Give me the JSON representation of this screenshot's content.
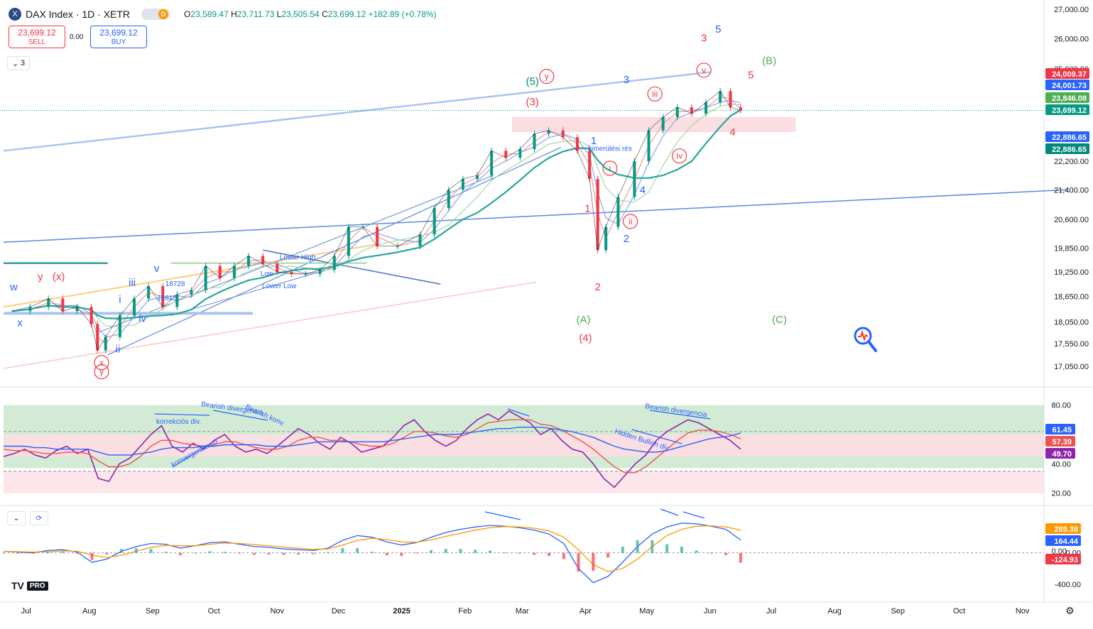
{
  "header": {
    "symbol_icon": "X",
    "title": "DAX Index · 1D · XETR",
    "badge": "D",
    "ohlc": {
      "o_label": "O",
      "o": "23,589.47",
      "h_label": "H",
      "h": "23,711.73",
      "l_label": "L",
      "l": "23,505.54",
      "c_label": "C",
      "c": "23,699.12",
      "change": "+182.89 (+0.78%)"
    }
  },
  "trade": {
    "sell_price": "23,699.12",
    "sell_label": "SELL",
    "spread": "0.00",
    "buy_price": "23,699.12",
    "buy_label": "BUY"
  },
  "legend_toggle": {
    "count": "3",
    "icon": "chevron-down-icon"
  },
  "macd_controls": {
    "collapse_icon": "chevron-down-icon",
    "refresh_icon": "refresh-icon"
  },
  "branding": {
    "logo": "TV",
    "plan": "PRO"
  },
  "settings_icon": "gear-icon",
  "chart_data": [
    {
      "type": "line",
      "panel": "price",
      "ylim": [
        16600,
        27200
      ],
      "scale": "log",
      "y_ticks": [
        "27,000.00",
        "26,000.00",
        "25,000.00",
        "23,000.00",
        "22,200.00",
        "21,400.00",
        "20,600.00",
        "19,850.00",
        "19,250.00",
        "18,650.00",
        "18,050.00",
        "17,550.00",
        "17,050.00"
      ],
      "x_ticks": [
        "Jul",
        "Aug",
        "Sep",
        "Oct",
        "Nov",
        "Dec",
        "2025",
        "Feb",
        "Mar",
        "Apr",
        "May",
        "Jun",
        "Jul",
        "Aug",
        "Sep",
        "Oct",
        "Nov"
      ],
      "x_ticks_bold": [
        6
      ],
      "series_close": [
        [
          "2024-06-24",
          18300
        ],
        [
          "2024-07-03",
          18400
        ],
        [
          "2024-07-12",
          18600
        ],
        [
          "2024-07-19",
          18300
        ],
        [
          "2024-07-26",
          18400
        ],
        [
          "2024-08-02",
          18000
        ],
        [
          "2024-08-05",
          17400
        ],
        [
          "2024-08-09",
          17700
        ],
        [
          "2024-08-16",
          18200
        ],
        [
          "2024-08-23",
          18600
        ],
        [
          "2024-08-30",
          18900
        ],
        [
          "2024-09-06",
          18400
        ],
        [
          "2024-09-13",
          18700
        ],
        [
          "2024-09-20",
          18800
        ],
        [
          "2024-09-27",
          19400
        ],
        [
          "2024-10-04",
          19100
        ],
        [
          "2024-10-11",
          19400
        ],
        [
          "2024-10-18",
          19650
        ],
        [
          "2024-10-25",
          19450
        ],
        [
          "2024-11-01",
          19250
        ],
        [
          "2024-11-08",
          19200
        ],
        [
          "2024-11-15",
          19200
        ],
        [
          "2024-11-22",
          19300
        ],
        [
          "2024-11-29",
          19650
        ],
        [
          "2024-12-06",
          20400
        ],
        [
          "2024-12-13",
          20400
        ],
        [
          "2024-12-20",
          19900
        ],
        [
          "2024-12-30",
          19900
        ],
        [
          "2025-01-10",
          20200
        ],
        [
          "2025-01-17",
          20900
        ],
        [
          "2025-01-24",
          21400
        ],
        [
          "2025-01-31",
          21700
        ],
        [
          "2025-02-07",
          21800
        ],
        [
          "2025-02-14",
          22500
        ],
        [
          "2025-02-21",
          22300
        ],
        [
          "2025-02-28",
          22550
        ],
        [
          "2025-03-07",
          23000
        ],
        [
          "2025-03-14",
          23100
        ],
        [
          "2025-03-21",
          22900
        ],
        [
          "2025-03-28",
          22500
        ],
        [
          "2025-04-03",
          21700
        ],
        [
          "2025-04-07",
          19800
        ],
        [
          "2025-04-11",
          20400
        ],
        [
          "2025-04-17",
          21200
        ],
        [
          "2025-04-25",
          22200
        ],
        [
          "2025-05-02",
          23100
        ],
        [
          "2025-05-09",
          23500
        ],
        [
          "2025-05-16",
          23800
        ],
        [
          "2025-05-23",
          23600
        ],
        [
          "2025-05-30",
          23950
        ],
        [
          "2025-06-06",
          24300
        ],
        [
          "2025-06-11",
          23800
        ],
        [
          "2025-06-16",
          23699
        ]
      ],
      "price_labels": [
        {
          "value": "24,009.37",
          "color": "#f23645"
        },
        {
          "value": "24,001.73",
          "color": "#2962ff"
        },
        {
          "value": "23,846.08",
          "color": "#4caf50"
        },
        {
          "value": "23,699.12",
          "color": "#089981"
        },
        {
          "value": "22,886.65",
          "color": "#2962ff"
        },
        {
          "value": "22,886.65",
          "color": "#00897b"
        }
      ],
      "annotations": [
        {
          "text": "3",
          "color": "#f23645"
        },
        {
          "text": "5",
          "color": "#2962ff"
        },
        {
          "text": "(B)",
          "color": "#4caf50"
        },
        {
          "text": "5",
          "color": "#f23645"
        },
        {
          "text": "v",
          "color": "#f23645",
          "circled": true
        },
        {
          "text": "y",
          "color": "#f23645",
          "circled": true
        },
        {
          "text": "(5)",
          "color": "#00897b"
        },
        {
          "text": "(3)",
          "color": "#f23645"
        },
        {
          "text": "3",
          "color": "#2962ff"
        },
        {
          "text": "iii",
          "color": "#f23645",
          "circled": true
        },
        {
          "text": "1",
          "color": "#2962ff"
        },
        {
          "text": "kimerülési rés",
          "color": "#2962ff"
        },
        {
          "text": "4",
          "color": "#f23645"
        },
        {
          "text": "iv",
          "color": "#f23645",
          "circled": true
        },
        {
          "text": "i",
          "color": "#f23645",
          "circled": true
        },
        {
          "text": "4",
          "color": "#2962ff"
        },
        {
          "text": "1",
          "color": "#f23645"
        },
        {
          "text": "ii",
          "color": "#f23645",
          "circled": true
        },
        {
          "text": "2",
          "color": "#2962ff"
        },
        {
          "text": "2",
          "color": "#f23645"
        },
        {
          "text": "(A)",
          "color": "#4caf50"
        },
        {
          "text": "(4)",
          "color": "#f23645"
        },
        {
          "text": "(C)",
          "color": "#4caf50"
        },
        {
          "text": "Lower High",
          "color": "#2962ff"
        },
        {
          "text": "Low",
          "color": "#2962ff"
        },
        {
          "text": "Lower Low",
          "color": "#2962ff"
        },
        {
          "text": "v",
          "color": "#2962ff"
        },
        {
          "text": "iii",
          "color": "#2962ff"
        },
        {
          "text": "18728",
          "color": "#2962ff"
        },
        {
          "text": "iv",
          "color": "#2962ff"
        },
        {
          "text": "ii",
          "color": "#2962ff"
        },
        {
          "text": "i",
          "color": "#2962ff"
        },
        {
          "text": "y",
          "color": "#f23645"
        },
        {
          "text": "(x)",
          "color": "#f23645"
        },
        {
          "text": "w",
          "color": "#2962ff"
        },
        {
          "text": "x",
          "color": "#2962ff"
        },
        {
          "text": "x",
          "color": "#f23645",
          "circled": true
        },
        {
          "text": "y",
          "color": "#f23645",
          "circled": true
        },
        {
          "text": "18615",
          "color": "#2962ff"
        }
      ]
    },
    {
      "type": "line",
      "panel": "rsi",
      "ylim": [
        15,
        90
      ],
      "y_ticks": [
        "80.00",
        "40.00",
        "20.00"
      ],
      "bands": [
        {
          "from": 60,
          "to": 80,
          "color": "#c8e6c9"
        },
        {
          "from": 45,
          "to": 60,
          "color": "#f8d7da"
        },
        {
          "from": 37,
          "to": 45,
          "color": "#c8e6c9"
        },
        {
          "from": 20,
          "to": 35,
          "color": "#fde0e3"
        }
      ],
      "levels_dashed": [
        62,
        35
      ],
      "series": [
        {
          "name": "RSI",
          "color": "#8e24aa",
          "values": [
            45,
            47,
            50,
            46,
            44,
            49,
            52,
            47,
            50,
            30,
            28,
            40,
            44,
            52,
            60,
            66,
            52,
            48,
            54,
            50,
            56,
            60,
            52,
            48,
            50,
            47,
            52,
            58,
            64,
            60,
            54,
            50,
            58,
            54,
            48,
            50,
            52,
            58,
            66,
            70,
            62,
            56,
            52,
            56,
            64,
            70,
            74,
            70,
            76,
            72,
            68,
            60,
            64,
            56,
            50,
            48,
            40,
            30,
            24,
            32,
            40,
            46,
            56,
            62,
            66,
            70,
            68,
            64,
            60,
            56,
            50
          ]
        },
        {
          "name": "RSI MA",
          "color": "#ef5350",
          "values": [
            50,
            49,
            49,
            48,
            47,
            47,
            48,
            48,
            47,
            42,
            38,
            38,
            40,
            45,
            52,
            56,
            56,
            54,
            53,
            52,
            53,
            55,
            55,
            53,
            51,
            50,
            50,
            52,
            56,
            58,
            58,
            56,
            56,
            55,
            53,
            52,
            52,
            54,
            58,
            62,
            62,
            61,
            59,
            58,
            60,
            64,
            68,
            69,
            70,
            70,
            70,
            67,
            66,
            63,
            59,
            55,
            50,
            44,
            38,
            34,
            34,
            38,
            44,
            50,
            56,
            61,
            63,
            63,
            62,
            60,
            57
          ]
        },
        {
          "name": "RSI MA long",
          "color": "#2962ff",
          "values": [
            52,
            52,
            52,
            51,
            51,
            50,
            50,
            50,
            50,
            48,
            46,
            46,
            46,
            47,
            48,
            50,
            51,
            51,
            51,
            52,
            52,
            53,
            53,
            53,
            53,
            52,
            52,
            52,
            53,
            54,
            55,
            55,
            55,
            55,
            55,
            55,
            55,
            56,
            57,
            58,
            59,
            60,
            60,
            60,
            61,
            62,
            63,
            64,
            64,
            65,
            65,
            65,
            64,
            63,
            62,
            60,
            58,
            55,
            52,
            50,
            49,
            48,
            48,
            49,
            51,
            53,
            55,
            57,
            58,
            59,
            61
          ]
        }
      ],
      "value_labels": [
        {
          "value": "61.45",
          "color": "#2962ff"
        },
        {
          "value": "57.39",
          "color": "#ef5350"
        },
        {
          "value": "49.70",
          "color": "#8e24aa"
        }
      ],
      "annotations": [
        {
          "text": "korrekciós div.",
          "color": "#2962ff"
        },
        {
          "text": "Bearish divergencia",
          "color": "#2962ff"
        },
        {
          "text": "Bearish konv.",
          "color": "#2962ff"
        },
        {
          "text": "konvergencia so",
          "color": "#2962ff"
        },
        {
          "text": "Bearish divergencia",
          "color": "#2962ff"
        },
        {
          "text": "Hidden Bullish div.",
          "color": "#2962ff"
        }
      ]
    },
    {
      "type": "line",
      "panel": "macd",
      "ylim": [
        -600,
        550
      ],
      "y_ticks": [
        "0.00",
        "-400.00"
      ],
      "series": [
        {
          "name": "MACD",
          "color": "#2962ff",
          "values": [
            20,
            10,
            0,
            30,
            40,
            10,
            -120,
            -80,
            20,
            80,
            120,
            110,
            60,
            90,
            130,
            140,
            110,
            80,
            70,
            50,
            40,
            30,
            60,
            160,
            220,
            200,
            140,
            100,
            130,
            200,
            260,
            300,
            330,
            350,
            340,
            320,
            290,
            240,
            120,
            -200,
            -380,
            -300,
            -120,
            80,
            240,
            330,
            380,
            370,
            340,
            300,
            164
          ]
        },
        {
          "name": "Signal",
          "color": "#ff9800",
          "values": [
            20,
            15,
            10,
            15,
            25,
            20,
            -30,
            -60,
            -30,
            20,
            70,
            95,
            90,
            90,
            110,
            125,
            120,
            105,
            90,
            75,
            60,
            45,
            50,
            100,
            160,
            185,
            170,
            140,
            135,
            165,
            210,
            250,
            290,
            320,
            335,
            330,
            315,
            280,
            200,
            40,
            -150,
            -240,
            -200,
            -80,
            80,
            220,
            300,
            340,
            345,
            330,
            289
          ]
        },
        {
          "name": "Histogram",
          "color": "#26a69a",
          "values": [
            0,
            -5,
            -10,
            15,
            15,
            -10,
            -90,
            -20,
            50,
            60,
            50,
            15,
            -30,
            0,
            20,
            15,
            -10,
            -25,
            -20,
            -25,
            -20,
            -15,
            10,
            60,
            60,
            15,
            -30,
            -40,
            -5,
            35,
            50,
            50,
            40,
            30,
            5,
            -10,
            -25,
            -40,
            -80,
            -240,
            -230,
            -60,
            80,
            160,
            160,
            110,
            80,
            30,
            -5,
            -30,
            -125
          ]
        }
      ],
      "value_labels": [
        {
          "value": "289.38",
          "color": "#ff9800"
        },
        {
          "value": "164.44",
          "color": "#2962ff"
        },
        {
          "value": "0.00",
          "color": "#131722"
        },
        {
          "value": "-124.93",
          "color": "#f23645"
        }
      ]
    }
  ]
}
